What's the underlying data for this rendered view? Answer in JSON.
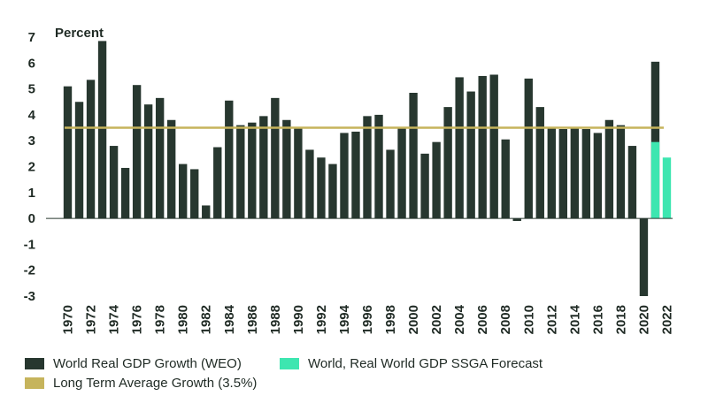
{
  "chart_data": {
    "type": "bar",
    "unit_label": "Percent",
    "ylim": [
      -3,
      7
    ],
    "yticks": [
      7,
      6,
      5,
      4,
      3,
      2,
      1,
      0,
      -1,
      -2,
      -3
    ],
    "grid": false,
    "legend_position": "bottom-left",
    "categories": [
      "1970",
      "1971",
      "1972",
      "1973",
      "1974",
      "1975",
      "1976",
      "1977",
      "1978",
      "1979",
      "1980",
      "1981",
      "1982",
      "1983",
      "1984",
      "1985",
      "1986",
      "1987",
      "1988",
      "1989",
      "1990",
      "1991",
      "1992",
      "1993",
      "1994",
      "1995",
      "1996",
      "1997",
      "1998",
      "1999",
      "2000",
      "2001",
      "2002",
      "2003",
      "2004",
      "2005",
      "2006",
      "2007",
      "2008",
      "2009",
      "2010",
      "2011",
      "2012",
      "2013",
      "2014",
      "2015",
      "2016",
      "2017",
      "2018",
      "2019",
      "2020",
      "2021",
      "2022"
    ],
    "xticks": [
      "1970",
      "1972",
      "1974",
      "1976",
      "1978",
      "1980",
      "1982",
      "1984",
      "1986",
      "1988",
      "1990",
      "1992",
      "1994",
      "1996",
      "1998",
      "2000",
      "2002",
      "2004",
      "2006",
      "2008",
      "2010",
      "2012",
      "2014",
      "2016",
      "2018",
      "2020",
      "2022"
    ],
    "series": [
      {
        "name": "World Real GDP Growth (WEO)",
        "color": "#27372f",
        "values": [
          5.1,
          4.5,
          5.35,
          6.85,
          2.8,
          1.95,
          5.15,
          4.4,
          4.65,
          3.8,
          2.1,
          1.9,
          0.5,
          2.75,
          4.55,
          3.6,
          3.7,
          3.95,
          4.65,
          3.8,
          3.5,
          2.65,
          2.35,
          2.1,
          3.3,
          3.35,
          3.95,
          4.0,
          2.65,
          3.5,
          4.85,
          2.5,
          2.95,
          4.3,
          5.45,
          4.9,
          5.5,
          5.55,
          3.05,
          -0.1,
          5.4,
          4.3,
          3.5,
          3.45,
          3.5,
          3.45,
          3.3,
          3.8,
          3.6,
          2.8,
          -3.0,
          6.05,
          null
        ]
      },
      {
        "name": "World, Real World GDP SSGA Forecast",
        "color": "#3de6b0",
        "values": [
          null,
          null,
          null,
          null,
          null,
          null,
          null,
          null,
          null,
          null,
          null,
          null,
          null,
          null,
          null,
          null,
          null,
          null,
          null,
          null,
          null,
          null,
          null,
          null,
          null,
          null,
          null,
          null,
          null,
          null,
          null,
          null,
          null,
          null,
          null,
          null,
          null,
          null,
          null,
          null,
          null,
          null,
          null,
          null,
          null,
          null,
          null,
          null,
          null,
          null,
          null,
          2.95,
          2.35
        ]
      }
    ],
    "reference_line": {
      "name": "Long Term Average Growth (3.5%)",
      "value": 3.5,
      "color": "#c6b45c"
    }
  },
  "legend": {
    "weo_label": "World Real GDP Growth (WEO)",
    "forecast_label": "World, Real World GDP SSGA Forecast",
    "average_label": "Long Term Average Growth (3.5%)"
  }
}
